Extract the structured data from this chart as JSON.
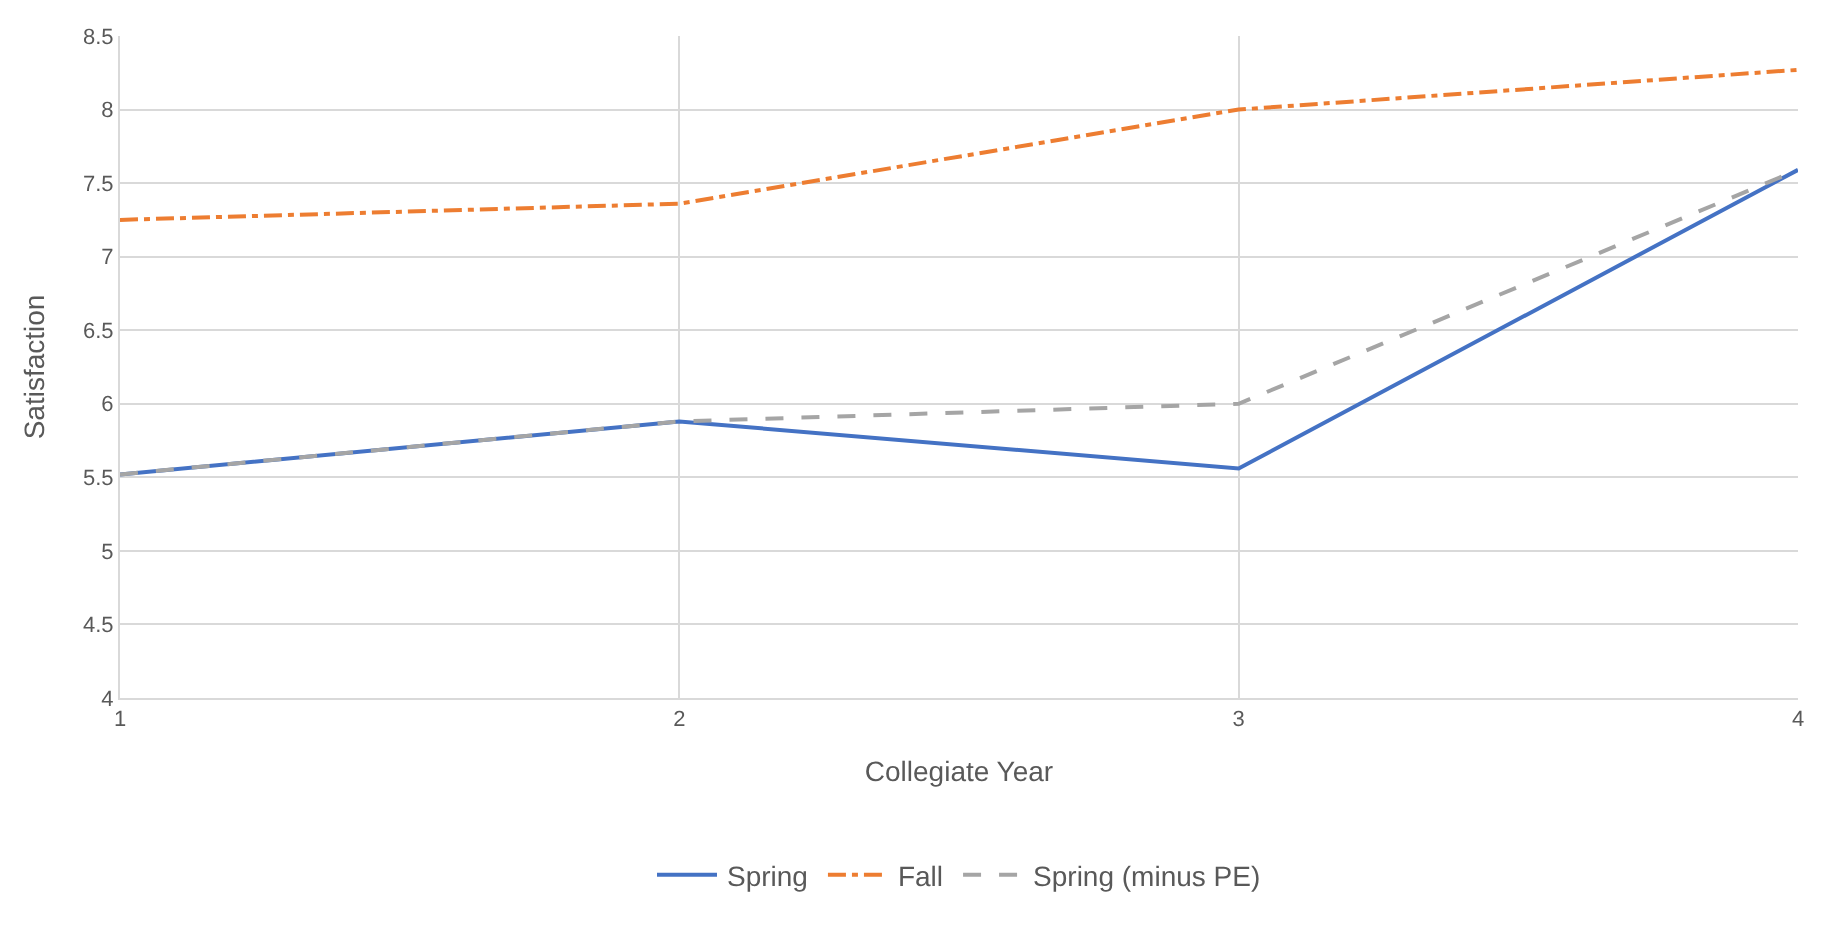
{
  "chart_data": {
    "type": "line",
    "xlabel": "Collegiate Year",
    "ylabel": "Satisfaction",
    "x": [
      1,
      2,
      3,
      4
    ],
    "series": [
      {
        "name": "Spring",
        "color": "#4472c4",
        "values": [
          5.52,
          5.88,
          5.56,
          7.59
        ],
        "line_style": "solid"
      },
      {
        "name": "Fall",
        "color": "#ed7d31",
        "values": [
          7.25,
          7.36,
          8.0,
          8.27
        ],
        "line_style": "dashdot"
      },
      {
        "name": "Spring (minus PE)",
        "color": "#a5a5a5",
        "values": [
          5.52,
          5.88,
          6.0,
          7.59
        ],
        "line_style": "dashed"
      }
    ],
    "xlim": [
      1,
      4
    ],
    "xticks": [
      1,
      2,
      3,
      4
    ],
    "ylim": [
      4,
      8.5
    ],
    "yticks": [
      4,
      4.5,
      5,
      5.5,
      6,
      6.5,
      7,
      7.5,
      8,
      8.5
    ],
    "grid": true,
    "legend": "bottom",
    "marker": "none"
  }
}
